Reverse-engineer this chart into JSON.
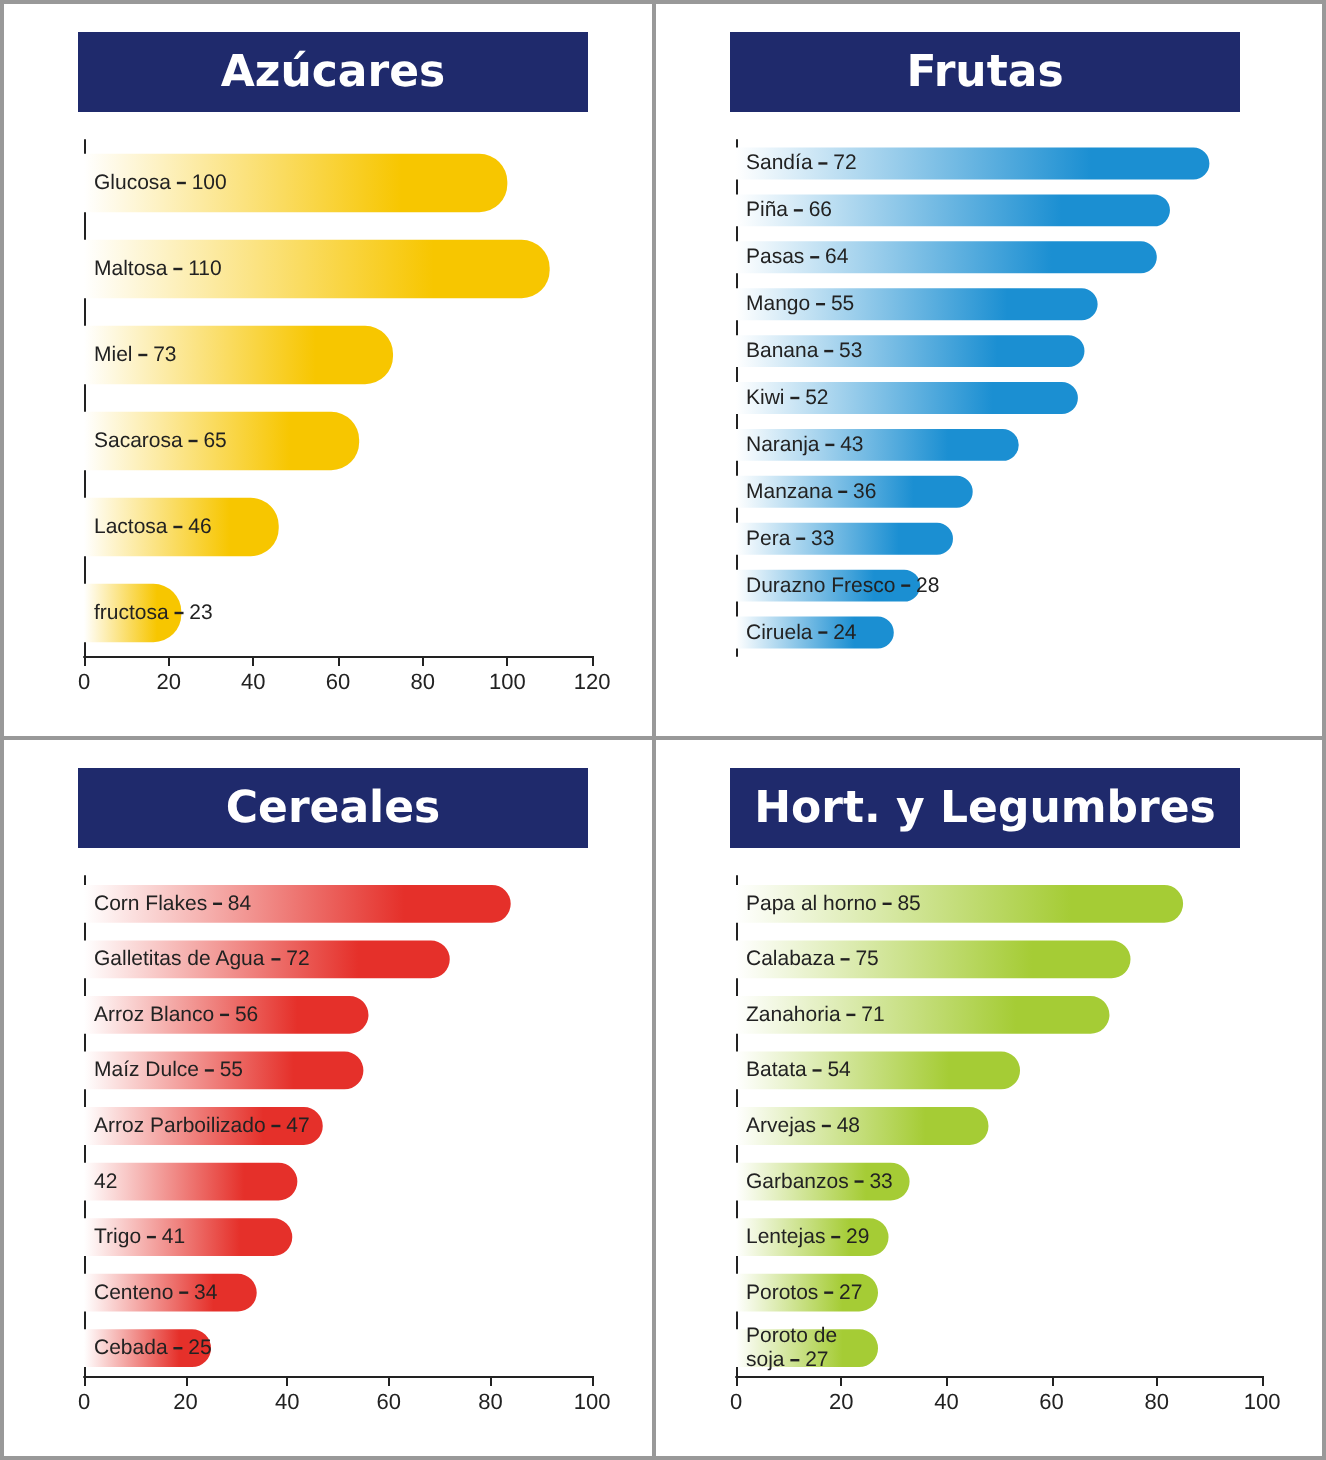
{
  "chart_data": [
    {
      "type": "bar",
      "orientation": "horizontal",
      "title": "Azúcares",
      "categories": [
        "Glucosa",
        "Maltosa",
        "Miel",
        "Sacarosa",
        "Lactosa",
        "fructosa"
      ],
      "values": [
        100,
        110,
        73,
        65,
        46,
        23
      ],
      "data_labels": true,
      "color": "#f7c600",
      "xlim": [
        0,
        120
      ],
      "xticks": [
        0,
        20,
        40,
        60,
        80,
        100,
        120
      ]
    },
    {
      "type": "bar",
      "orientation": "horizontal",
      "title": "Frutas",
      "categories": [
        "Sandía",
        "Piña",
        "Pasas",
        "Mango",
        "Banana",
        "Kiwi",
        "Naranja",
        "Manzana",
        "Pera",
        "Durazno Fresco",
        "Ciruela"
      ],
      "values": [
        72,
        66,
        64,
        55,
        53,
        52,
        43,
        36,
        33,
        28,
        24
      ],
      "data_labels": true,
      "color": "#1b8fd2",
      "tick_labels": false
    },
    {
      "type": "bar",
      "orientation": "horizontal",
      "title": "Cereales",
      "categories": [
        "Corn Flakes",
        "Galletitas de Agua",
        "Arroz Blanco",
        "Maíz Dulce",
        "Arroz Parboilizado",
        null,
        "Trigo",
        "Centeno",
        "Cebada"
      ],
      "values": [
        84,
        72,
        56,
        55,
        47,
        42,
        41,
        34,
        25
      ],
      "data_labels": true,
      "color": "#e5302a",
      "xlim": [
        0,
        100
      ],
      "xticks": [
        0,
        20,
        40,
        60,
        80,
        100
      ]
    },
    {
      "type": "bar",
      "orientation": "horizontal",
      "title": "Hort. y Legumbres",
      "categories": [
        "Papa al horno",
        "Calabaza",
        "Zanahoria",
        "Batata",
        "Arvejas",
        "Garbanzos",
        "Lentejas",
        "Porotos",
        "Poroto de\nsoja"
      ],
      "values": [
        85,
        75,
        71,
        54,
        48,
        33,
        29,
        27,
        27
      ],
      "data_labels": true,
      "color": "#a5cc35",
      "xlim": [
        0,
        100
      ],
      "xticks": [
        0,
        20,
        40,
        60,
        80,
        100
      ]
    }
  ]
}
